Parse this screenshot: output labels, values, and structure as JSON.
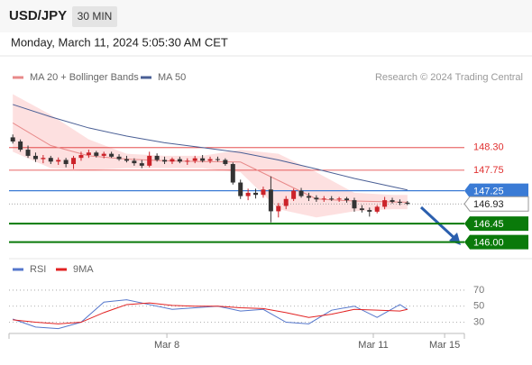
{
  "chart_data": {
    "type": "candlestick",
    "symbol": "USD/JPY",
    "timeframe": "30 MIN",
    "date": "Monday, March 11, 2024 5:05:30 AM CET",
    "legend": [
      "MA 20 + Bollinger Bands",
      "MA 50"
    ],
    "credit": "Research © 2024 Trading Central",
    "up_color": "#cc2229",
    "down_color": "#333333",
    "xlim": [
      -0.5,
      59.5
    ],
    "xticks": [
      {
        "value": 20.3,
        "label": "Mar 8"
      },
      {
        "value": 47.5,
        "label": "Mar 11"
      },
      {
        "value": 56.9,
        "label": "Mar 15"
      }
    ],
    "ylim": [
      145.75,
      149.7
    ],
    "candles": [
      [
        148.55,
        148.62,
        148.4,
        148.45
      ],
      [
        148.45,
        148.5,
        148.2,
        148.25
      ],
      [
        148.25,
        148.35,
        148.05,
        148.1
      ],
      [
        148.1,
        148.18,
        147.95,
        148.02
      ],
      [
        148.02,
        148.12,
        147.92,
        148.05
      ],
      [
        148.05,
        148.1,
        147.9,
        147.96
      ],
      [
        147.96,
        148.06,
        147.88,
        148.0
      ],
      [
        148.0,
        148.05,
        147.82,
        147.9
      ],
      [
        147.9,
        148.1,
        147.78,
        148.05
      ],
      [
        148.05,
        148.2,
        147.98,
        148.12
      ],
      [
        148.12,
        148.25,
        148.05,
        148.18
      ],
      [
        148.18,
        148.22,
        148.06,
        148.1
      ],
      [
        148.1,
        148.2,
        148.04,
        148.15
      ],
      [
        148.15,
        148.2,
        148.05,
        148.08
      ],
      [
        148.08,
        148.14,
        147.98,
        148.02
      ],
      [
        148.02,
        148.1,
        147.94,
        147.98
      ],
      [
        147.98,
        148.04,
        147.86,
        147.92
      ],
      [
        147.92,
        148.0,
        147.8,
        147.86
      ],
      [
        147.86,
        148.2,
        147.82,
        148.1
      ],
      [
        148.1,
        148.16,
        147.96,
        148.0
      ],
      [
        148.0,
        148.08,
        147.9,
        147.96
      ],
      [
        147.96,
        148.06,
        147.9,
        148.02
      ],
      [
        148.02,
        148.08,
        147.92,
        147.96
      ],
      [
        147.96,
        148.04,
        147.88,
        147.98
      ],
      [
        147.98,
        148.1,
        147.92,
        148.04
      ],
      [
        148.04,
        148.12,
        147.94,
        147.98
      ],
      [
        147.98,
        148.08,
        147.92,
        148.02
      ],
      [
        148.02,
        148.08,
        147.96,
        148.0
      ],
      [
        148.0,
        148.04,
        147.86,
        147.9
      ],
      [
        147.9,
        147.94,
        147.4,
        147.45
      ],
      [
        147.45,
        147.52,
        147.05,
        147.12
      ],
      [
        147.12,
        147.3,
        147.02,
        147.2
      ],
      [
        147.2,
        147.3,
        147.06,
        147.15
      ],
      [
        147.15,
        147.35,
        147.08,
        147.28
      ],
      [
        147.28,
        147.6,
        146.48,
        146.75
      ],
      [
        146.75,
        146.95,
        146.6,
        146.88
      ],
      [
        146.88,
        147.12,
        146.8,
        147.05
      ],
      [
        147.05,
        147.3,
        147.0,
        147.25
      ],
      [
        147.25,
        147.32,
        147.08,
        147.12
      ],
      [
        147.12,
        147.2,
        147.0,
        147.08
      ],
      [
        147.08,
        147.14,
        146.98,
        147.04
      ],
      [
        147.04,
        147.12,
        146.98,
        147.06
      ],
      [
        147.06,
        147.12,
        147.0,
        147.04
      ],
      [
        147.04,
        147.1,
        146.98,
        147.06
      ],
      [
        147.06,
        147.1,
        146.96,
        147.02
      ],
      [
        147.02,
        147.08,
        146.74,
        146.82
      ],
      [
        146.82,
        146.9,
        146.72,
        146.78
      ],
      [
        146.78,
        146.84,
        146.62,
        146.74
      ],
      [
        146.74,
        146.9,
        146.7,
        146.86
      ],
      [
        146.86,
        147.1,
        146.8,
        147.02
      ],
      [
        147.02,
        147.08,
        146.94,
        146.98
      ],
      [
        146.98,
        147.04,
        146.9,
        146.96
      ],
      [
        146.96,
        147.0,
        146.9,
        146.93
      ]
    ],
    "overlay_x": [
      0,
      5,
      10,
      15,
      20,
      25,
      30,
      35,
      40,
      45,
      50,
      52
    ],
    "ma20": {
      "color": "#e88a8a",
      "values": [
        148.9,
        148.35,
        148.1,
        148.02,
        147.98,
        147.96,
        147.95,
        147.5,
        147.05,
        147.0,
        146.98,
        146.97
      ]
    },
    "ma50": {
      "color": "#4a5f95",
      "values": [
        149.35,
        149.05,
        148.78,
        148.58,
        148.42,
        148.3,
        148.18,
        148.0,
        147.78,
        147.55,
        147.35,
        147.27
      ]
    },
    "bb_color": "#fde0e0",
    "bb_upper": [
      149.6,
      149.1,
      148.5,
      148.15,
      148.1,
      148.1,
      148.25,
      148.15,
      147.7,
      147.2,
      147.15,
      147.15
    ],
    "bb_lower": [
      148.2,
      147.8,
      147.75,
      147.8,
      147.8,
      147.8,
      147.7,
      146.8,
      146.6,
      146.75,
      146.8,
      146.8
    ],
    "levels": [
      {
        "value": 148.3,
        "label": "148.30",
        "color": "#e03030",
        "style": "text"
      },
      {
        "value": 147.75,
        "color": "#e03030",
        "style": "text"
      },
      {
        "value": 147.25,
        "color": "#3a7bd5",
        "style": "box"
      },
      {
        "value": 146.93,
        "color": "#888888",
        "style": "current"
      },
      {
        "value": 146.45,
        "color": "#0a7a0a",
        "style": "box"
      },
      {
        "value": 146.0,
        "label": "146.00",
        "color": "#0a7a0a",
        "style": "box"
      }
    ],
    "rsi": {
      "ylim": [
        16,
        89
      ],
      "yticks": [
        30,
        50,
        70
      ],
      "x": [
        0,
        3,
        6,
        9,
        12,
        15,
        18,
        21,
        24,
        27,
        30,
        33,
        36,
        39,
        42,
        45,
        48,
        51,
        52
      ],
      "series": [
        {
          "name": "RSI",
          "color": "#5577cc",
          "values": [
            34,
            24,
            22,
            30,
            55,
            58,
            52,
            46,
            48,
            50,
            44,
            46,
            30,
            28,
            45,
            50,
            36,
            52,
            46
          ]
        },
        {
          "name": "9MA",
          "color": "#e22222",
          "values": [
            33,
            30,
            28,
            30,
            42,
            52,
            54,
            51,
            50,
            50,
            48,
            47,
            42,
            36,
            40,
            46,
            45,
            44,
            46
          ]
        }
      ]
    }
  }
}
